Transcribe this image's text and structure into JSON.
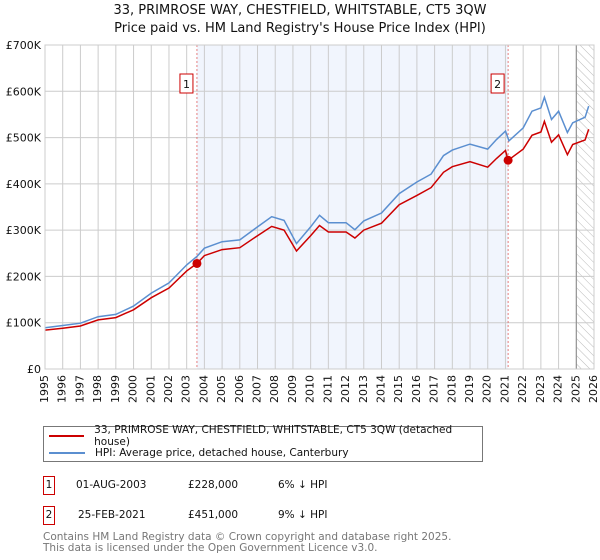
{
  "chart_data": {
    "type": "line",
    "title": "33, PRIMROSE WAY, CHESTFIELD, WHITSTABLE, CT5 3QW",
    "subtitle": "Price paid vs. HM Land Registry's House Price Index (HPI)",
    "xlim": [
      1995,
      2026
    ],
    "ylim": [
      0,
      700000
    ],
    "x_ticks": [
      "1995",
      "1996",
      "1997",
      "1998",
      "1999",
      "2000",
      "2001",
      "2002",
      "2003",
      "2004",
      "2005",
      "2006",
      "2007",
      "2008",
      "2009",
      "2010",
      "2011",
      "2012",
      "2013",
      "2014",
      "2015",
      "2016",
      "2017",
      "2018",
      "2019",
      "2020",
      "2021",
      "2022",
      "2023",
      "2024",
      "2025",
      "2026"
    ],
    "y_ticks": [
      {
        "v": 0,
        "label": "£0"
      },
      {
        "v": 100000,
        "label": "£100K"
      },
      {
        "v": 200000,
        "label": "£200K"
      },
      {
        "v": 300000,
        "label": "£300K"
      },
      {
        "v": 400000,
        "label": "£400K"
      },
      {
        "v": 500000,
        "label": "£500K"
      },
      {
        "v": 600000,
        "label": "£600K"
      },
      {
        "v": 700000,
        "label": "£700K"
      }
    ],
    "shaded_range": [
      2003.58,
      2021.15
    ],
    "hatched_from": 2025.0,
    "series": [
      {
        "name": "33, PRIMROSE WAY, CHESTFIELD, WHITSTABLE, CT5 3QW (detached house)",
        "color": "#cc0000",
        "x": [
          1995,
          1996,
          1997,
          1998,
          1999,
          2000,
          2001,
          2002,
          2003,
          2003.58,
          2004,
          2005,
          2006,
          2007,
          2007.8,
          2008.5,
          2009.2,
          2010,
          2010.5,
          2011,
          2012,
          2012.5,
          2013,
          2014,
          2015,
          2016,
          2016.8,
          2017.5,
          2018,
          2019,
          2020,
          2020.5,
          2021,
          2021.15,
          2022,
          2022.5,
          2023,
          2023.2,
          2023.6,
          2024,
          2024.5,
          2024.8,
          2025.5,
          2025.7
        ],
        "y": [
          84000,
          88000,
          93000,
          106000,
          111000,
          128000,
          154000,
          175000,
          212000,
          228000,
          245000,
          258000,
          262000,
          288000,
          308000,
          300000,
          255000,
          288000,
          310000,
          296000,
          296000,
          283000,
          300000,
          315000,
          355000,
          375000,
          392000,
          425000,
          437000,
          448000,
          436000,
          455000,
          472000,
          451000,
          475000,
          505000,
          512000,
          535000,
          490000,
          506000,
          463000,
          485000,
          495000,
          518000
        ]
      },
      {
        "name": "HPI: Average price, detached house, Canterbury",
        "color": "#5b8fd0",
        "x": [
          1995,
          1996,
          1997,
          1998,
          1999,
          2000,
          2001,
          2002,
          2003,
          2003.58,
          2004,
          2005,
          2006,
          2007,
          2007.8,
          2008.5,
          2009.2,
          2010,
          2010.5,
          2011,
          2012,
          2012.5,
          2013,
          2014,
          2015,
          2016,
          2016.8,
          2017.5,
          2018,
          2019,
          2020,
          2020.5,
          2021,
          2021.2,
          2022,
          2022.5,
          2023,
          2023.2,
          2023.6,
          2024,
          2024.5,
          2024.8,
          2025.5,
          2025.7
        ],
        "y": [
          89000,
          94000,
          99000,
          113000,
          118000,
          136000,
          164000,
          186000,
          225000,
          243000,
          261000,
          275000,
          279000,
          307000,
          329000,
          321000,
          271000,
          307000,
          332000,
          316000,
          316000,
          301000,
          320000,
          337000,
          379000,
          404000,
          421000,
          461000,
          473000,
          486000,
          475000,
          496000,
          514000,
          493000,
          521000,
          557000,
          564000,
          587000,
          539000,
          557000,
          511000,
          532000,
          544000,
          568000
        ]
      }
    ],
    "markers": [
      {
        "label": "1",
        "x": 2003.58,
        "y": 228000
      },
      {
        "label": "2",
        "x": 2021.15,
        "y": 451000
      }
    ]
  },
  "legend": {
    "red": "33, PRIMROSE WAY, CHESTFIELD, WHITSTABLE, CT5 3QW (detached house)",
    "blue": "HPI: Average price, detached house, Canterbury"
  },
  "transactions": [
    {
      "num": "1",
      "date": "01-AUG-2003",
      "price": "£228,000",
      "hpi": "6% ↓ HPI"
    },
    {
      "num": "2",
      "date": "25-FEB-2021",
      "price": "£451,000",
      "hpi": "9% ↓ HPI"
    }
  ],
  "footer": {
    "line1": "Contains HM Land Registry data © Crown copyright and database right 2025.",
    "line2": "This data is licensed under the Open Government Licence v3.0."
  }
}
